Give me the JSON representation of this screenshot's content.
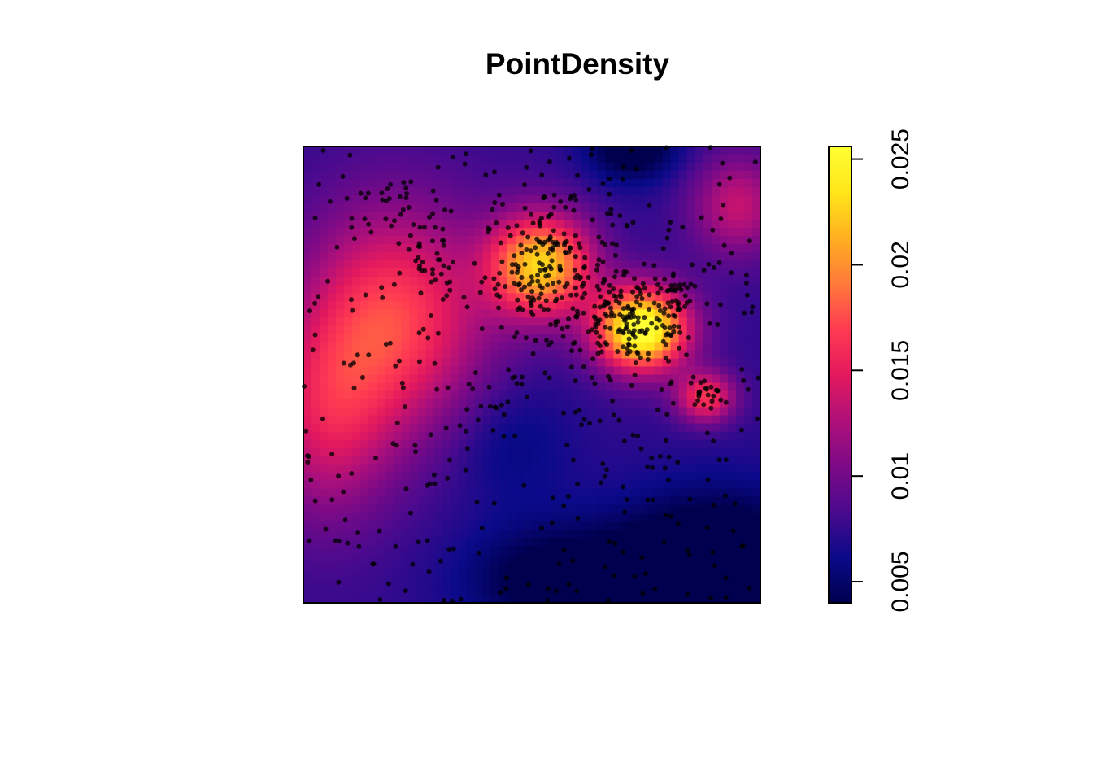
{
  "chart_data": {
    "type": "heatmap",
    "title": "PointDensity",
    "xlabel": "",
    "ylabel": "",
    "axes_visible": false,
    "colormap": [
      "#00004f",
      "#0b0a8a",
      "#4b0a8e",
      "#7d0a86",
      "#b0107a",
      "#e3195e",
      "#ff3b52",
      "#ff7a3a",
      "#ffb020",
      "#ffe61a",
      "#ffff33"
    ],
    "colorbar": {
      "range": [
        0.004,
        0.0256
      ],
      "ticks": [
        0.005,
        0.01,
        0.015,
        0.02,
        0.025
      ],
      "tick_labels": [
        "0.005",
        "0.01",
        "0.015",
        "0.02",
        "0.025"
      ]
    },
    "density_hotspots": [
      {
        "x": 0.73,
        "y": 0.6,
        "level": "high"
      },
      {
        "x": 0.53,
        "y": 0.73,
        "level": "high"
      },
      {
        "x": 0.9,
        "y": 0.1,
        "level": "low"
      },
      {
        "x": 0.72,
        "y": 0.98,
        "level": "low"
      }
    ],
    "points_description": "about 800 scattered points with dense clusters near the upper-center and center-right",
    "point_color": "#000000"
  }
}
